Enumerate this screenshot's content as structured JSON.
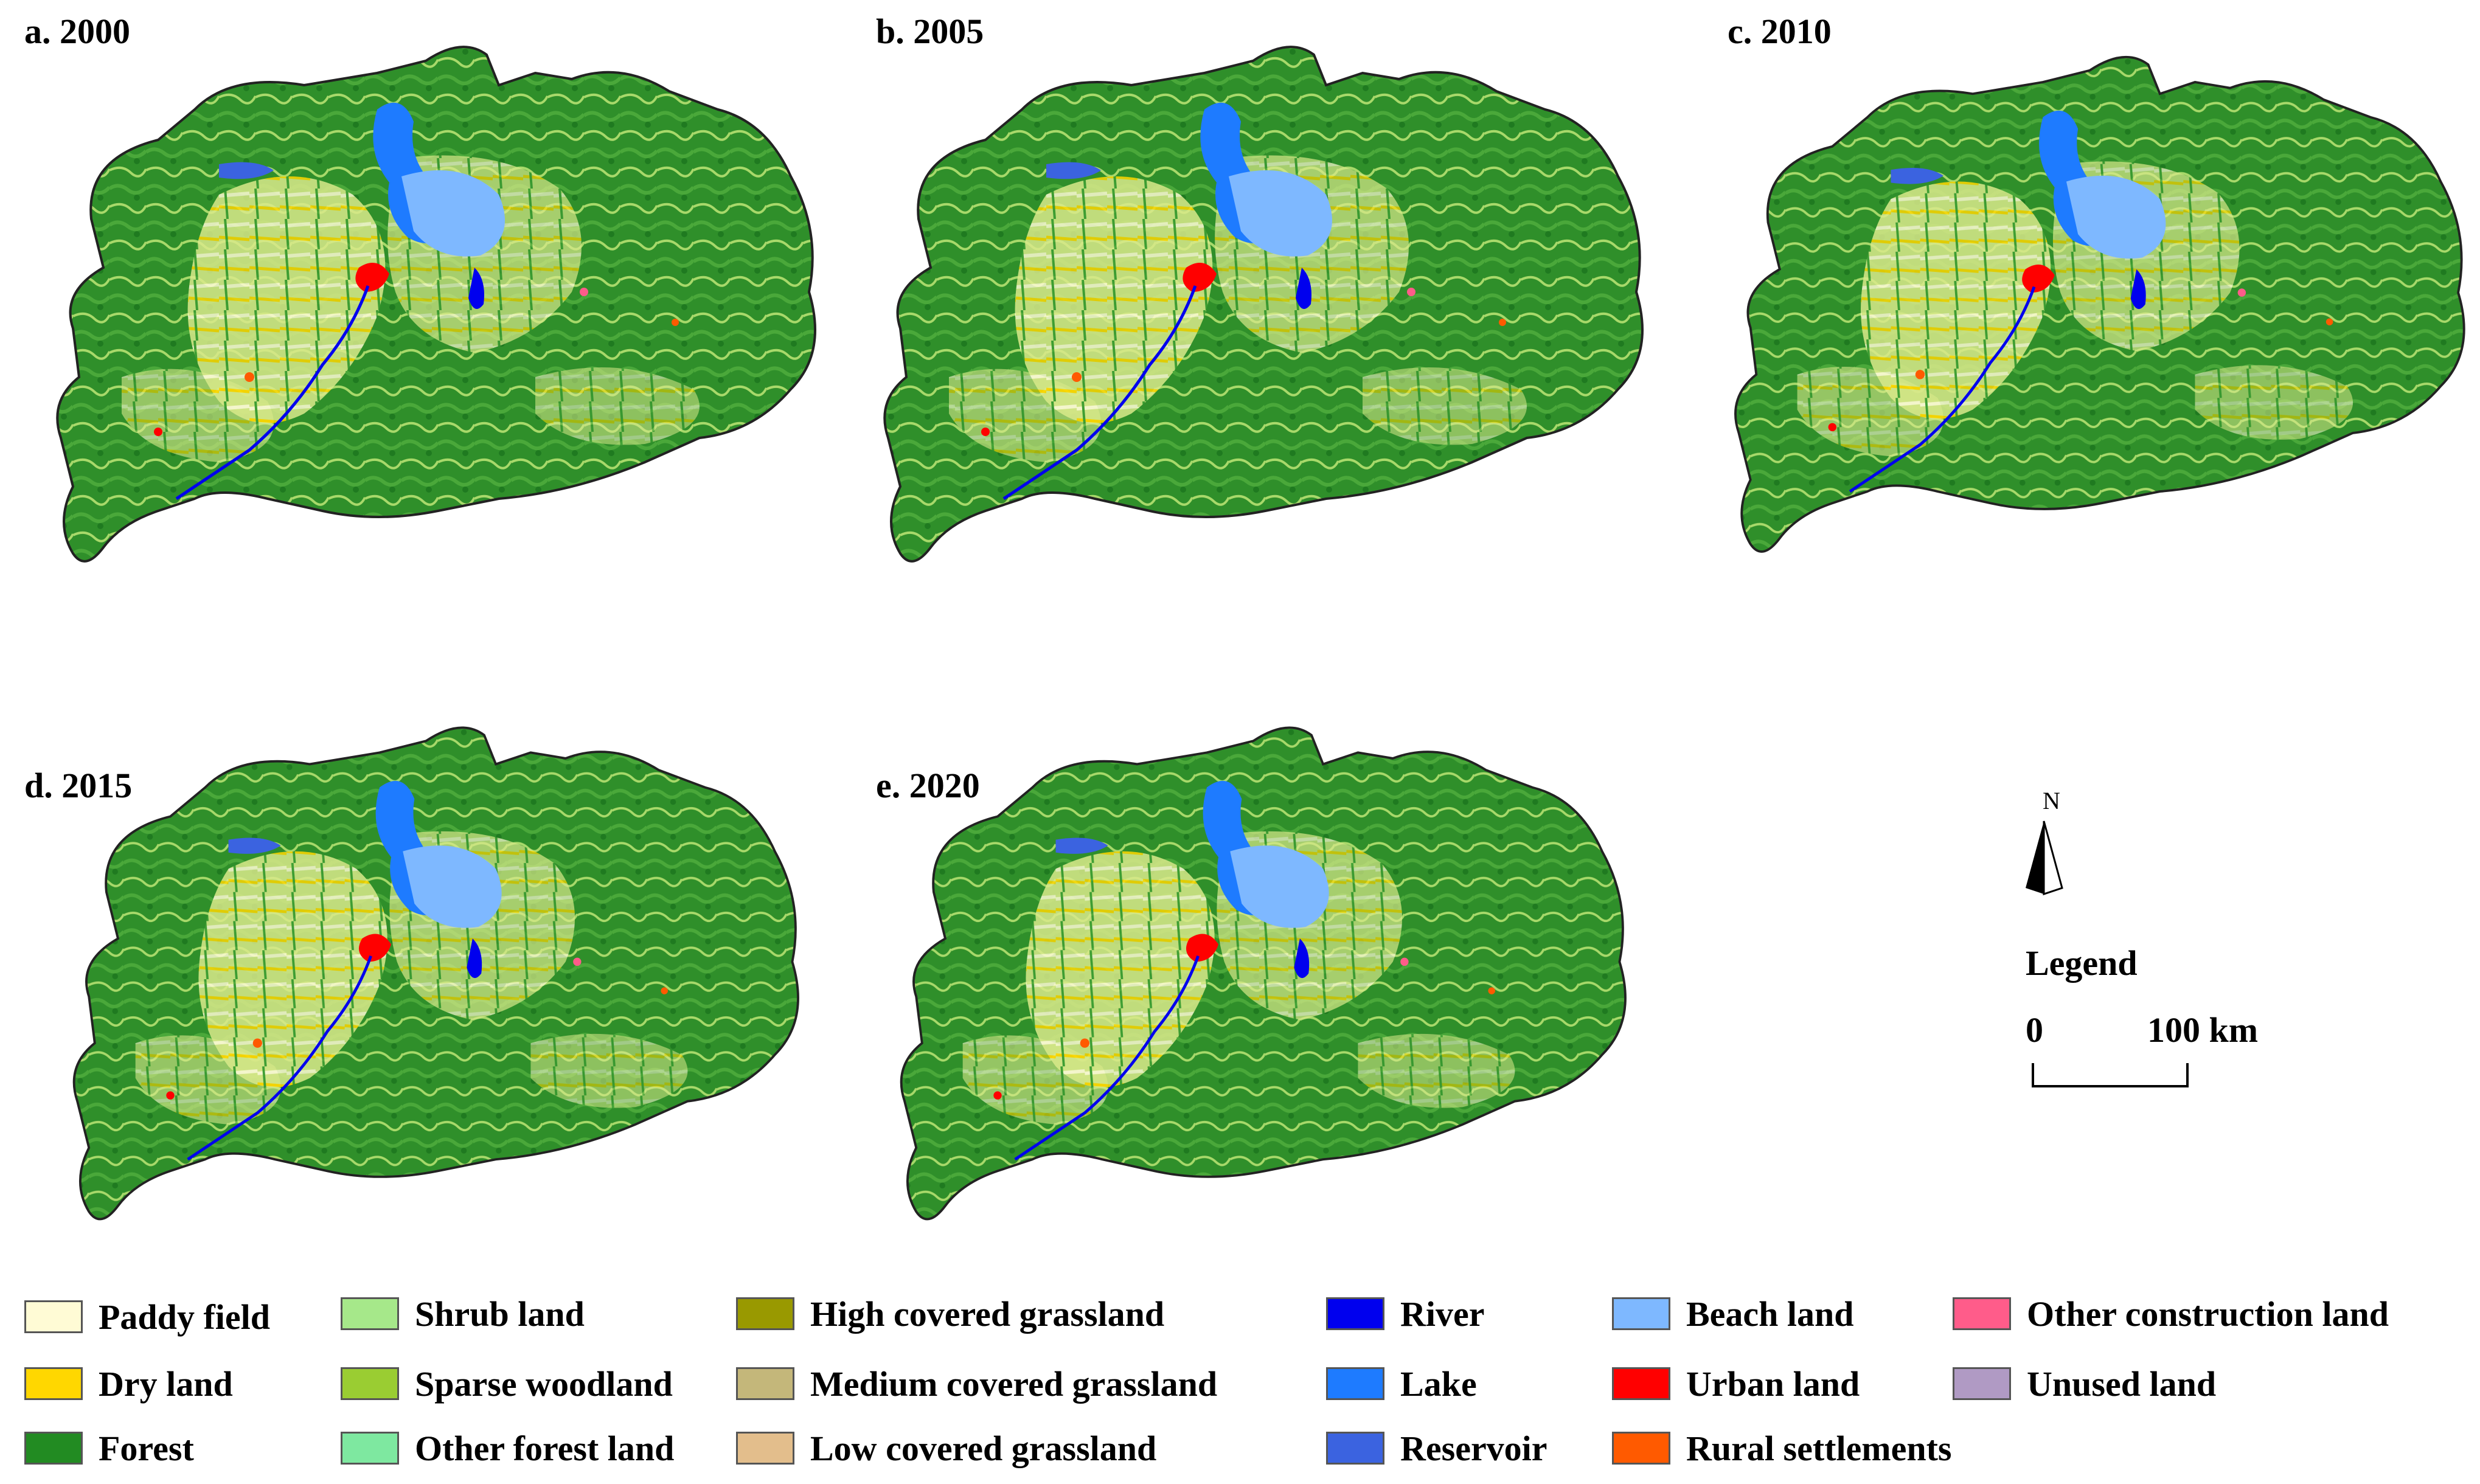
{
  "panels": [
    {
      "title": "a. 2000"
    },
    {
      "title": "b. 2005"
    },
    {
      "title": "c. 2010"
    },
    {
      "title": "d. 2015"
    },
    {
      "title": "e. 2020"
    }
  ],
  "north_arrow": {
    "label": "N",
    "icon": "north-arrow-icon"
  },
  "legend_title": "Legend",
  "scale_bar": {
    "start": "0",
    "end": "100",
    "unit": "km"
  },
  "legend": [
    {
      "label": "Paddy field",
      "color": "#fffbd5"
    },
    {
      "label": "Dry land",
      "color": "#ffd700"
    },
    {
      "label": "Forest",
      "color": "#228b22"
    },
    {
      "label": "Shrub land",
      "color": "#a6e88a"
    },
    {
      "label": "Sparse woodland",
      "color": "#9acd32"
    },
    {
      "label": "Other forest land",
      "color": "#7ee8a0"
    },
    {
      "label": "High covered grassland",
      "color": "#999900"
    },
    {
      "label": "Medium covered grassland",
      "color": "#c4b77a"
    },
    {
      "label": "Low covered grassland",
      "color": "#e3be8c"
    },
    {
      "label": "River",
      "color": "#0000ee"
    },
    {
      "label": "Lake",
      "color": "#1e7bff"
    },
    {
      "label": "Reservoir",
      "color": "#3b63e0"
    },
    {
      "label": "Beach land",
      "color": "#7eb8ff"
    },
    {
      "label": "Urban land",
      "color": "#ff0000"
    },
    {
      "label": "Rural settlements",
      "color": "#ff5a00"
    },
    {
      "label": "Other construction land",
      "color": "#ff5c8a"
    },
    {
      "label": "Unused land",
      "color": "#b09ac4"
    }
  ]
}
